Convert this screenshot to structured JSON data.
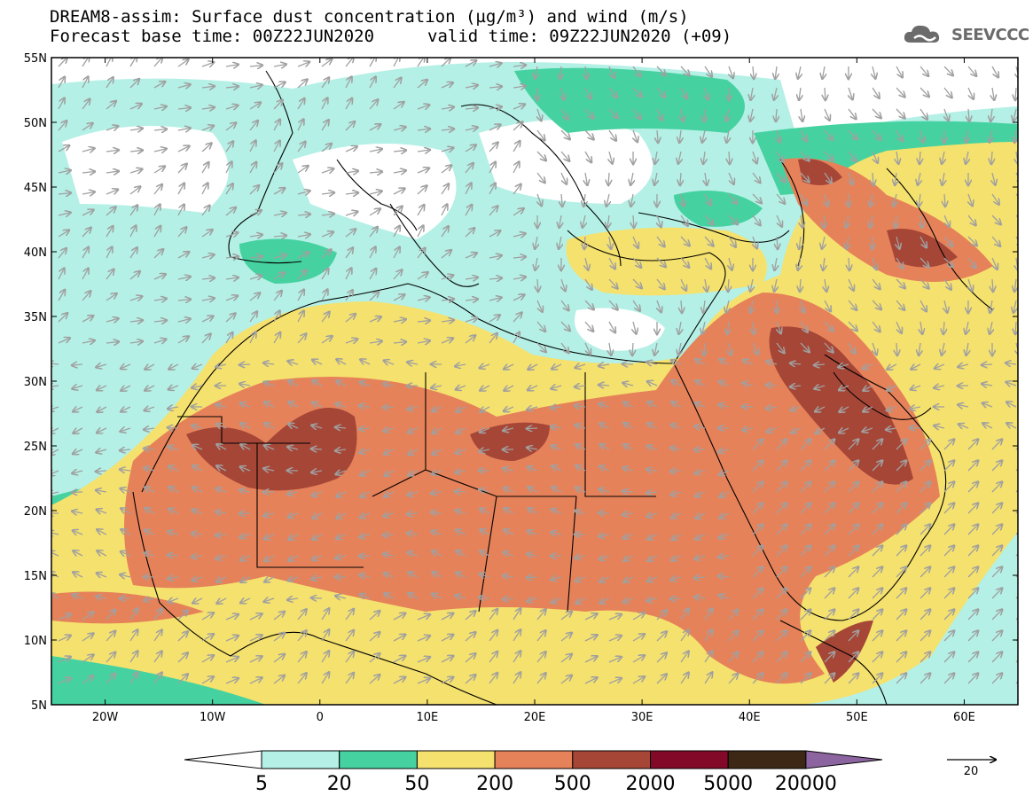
{
  "header": {
    "title_line1": "DREAM8-assim: Surface dust concentration (µg/m³) and wind (m/s)",
    "base_time": "Forecast base time: 00Z22JUN2020",
    "valid_time": "valid time: 09Z22JUN2020 (+09)"
  },
  "logo": {
    "text": "SEEVCCC",
    "icon": "cloud-icon"
  },
  "map": {
    "lat_range": [
      5,
      55
    ],
    "lon_range": [
      -25,
      65
    ],
    "lat_labels": [
      "55N",
      "50N",
      "45N",
      "40N",
      "35N",
      "30N",
      "25N",
      "20N",
      "15N",
      "10N",
      "5N"
    ],
    "lon_labels": [
      "20W",
      "10W",
      "0",
      "10E",
      "20E",
      "30E",
      "40E",
      "50E",
      "60E"
    ],
    "wind_vector_color": "#a0a0a0",
    "coastline_color": "#000000"
  },
  "colorbar": {
    "labels": [
      "5",
      "20",
      "50",
      "200",
      "500",
      "2000",
      "5000",
      "20000"
    ],
    "colors": [
      "#ffffff",
      "#b4f0e6",
      "#46d2a0",
      "#f5e16e",
      "#e6825a",
      "#a54637",
      "#820a28",
      "#3c2814",
      "#8c64a0"
    ]
  },
  "wind_reference": {
    "label": "20"
  },
  "levels": {
    "light_cyan": "#b4f0e6",
    "cyan": "#46d2a0",
    "yellow": "#f5e16e",
    "orange": "#e6825a",
    "brown": "#a54637"
  }
}
